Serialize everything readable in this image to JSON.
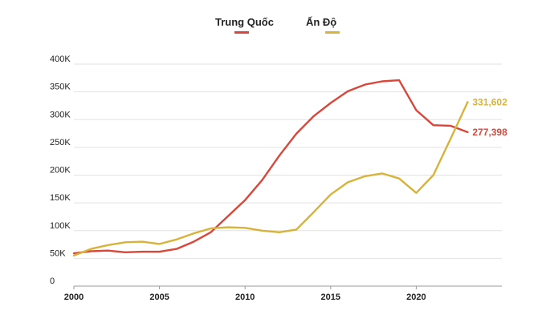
{
  "chart_data": {
    "type": "line",
    "title": "",
    "xlabel": "",
    "ylabel": "",
    "x": [
      2000,
      2001,
      2002,
      2003,
      2004,
      2005,
      2006,
      2007,
      2008,
      2009,
      2010,
      2011,
      2012,
      2013,
      2014,
      2015,
      2016,
      2017,
      2018,
      2019,
      2020,
      2021,
      2022,
      2023
    ],
    "xticks": [
      2000,
      2005,
      2010,
      2015,
      2020
    ],
    "xtick_labels": [
      "2000",
      "2005",
      "2010",
      "2015",
      "2020"
    ],
    "yticks": [
      0,
      50000,
      100000,
      150000,
      200000,
      250000,
      300000,
      350000,
      400000
    ],
    "ytick_labels": [
      "0",
      "50K",
      "100K",
      "150K",
      "200K",
      "250K",
      "300K",
      "350K",
      "400K"
    ],
    "xlim": [
      2000,
      2025
    ],
    "ylim": [
      0,
      400000
    ],
    "grid": true,
    "legend_position": "top-center",
    "series": [
      {
        "name": "Trung Quốc",
        "color": "#d9473b",
        "values": [
          59000,
          63000,
          64000,
          61000,
          62000,
          62000,
          67000,
          80000,
          97000,
          126000,
          155000,
          191000,
          235000,
          275000,
          306000,
          330000,
          351000,
          363000,
          369000,
          371000,
          317000,
          290000,
          289000,
          277398
        ],
        "end_label": "277,398"
      },
      {
        "name": "Ấn Độ",
        "color": "#d8b33a",
        "values": [
          55000,
          67000,
          74000,
          79000,
          80000,
          76000,
          84000,
          95000,
          104000,
          106000,
          105000,
          100000,
          97000,
          102000,
          133000,
          165000,
          187000,
          198000,
          203000,
          194000,
          168000,
          200000,
          265000,
          331602
        ],
        "end_label": "331,602"
      }
    ]
  }
}
